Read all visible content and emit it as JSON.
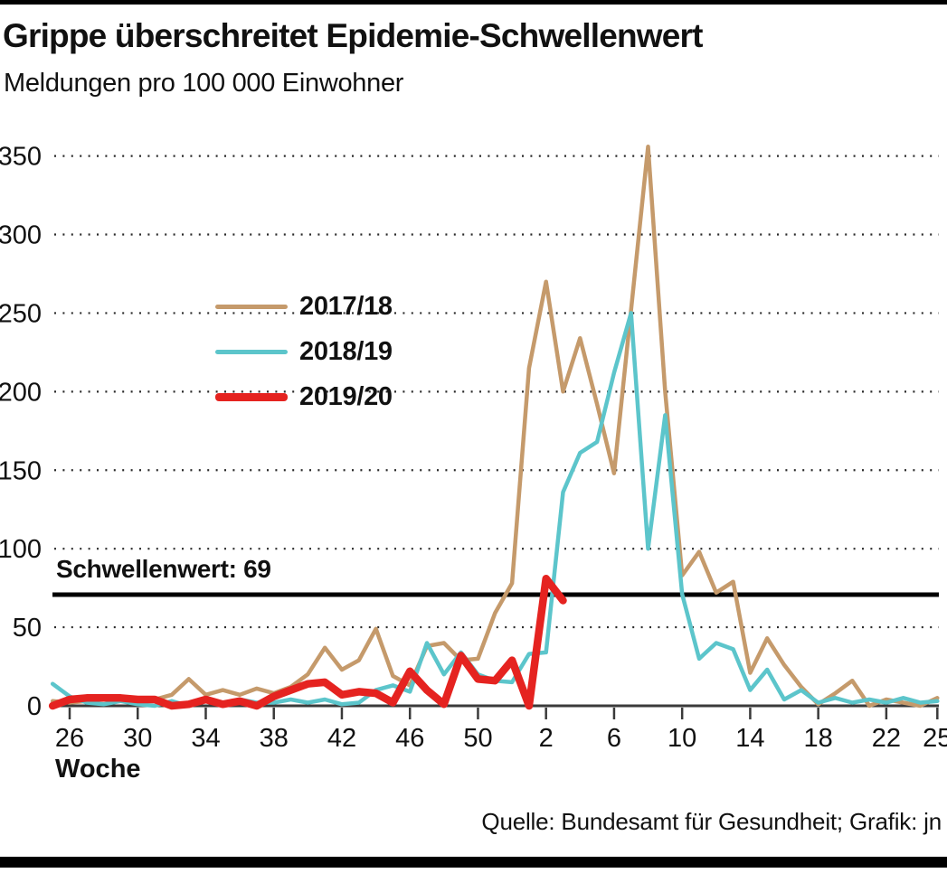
{
  "page": {
    "title": "Grippe überschreitet Epidemie-Schwellenwert",
    "subtitle": "Meldungen pro 100 000 Einwohner",
    "source": "Quelle: Bundesamt für Gesundheit; Grafik: jn"
  },
  "colors": {
    "text": "#111111",
    "axis": "#3a3a3a",
    "grid_dots": "#2a2a2a",
    "threshold_line": "#000000",
    "series_2017_18": "#c59a6b",
    "series_2018_19": "#5cc5cb",
    "series_2019_20": "#e52320"
  },
  "chart_data": {
    "type": "line",
    "x_label": "Woche",
    "y_ticks": [
      0,
      50,
      100,
      150,
      200,
      250,
      300,
      350
    ],
    "ylim": [
      0,
      350
    ],
    "grid": "dotted-horizontal",
    "legend_position": "upper-left-inside",
    "threshold": {
      "value": 69,
      "label": "Schwellenwert: 69"
    },
    "weeks": [
      "25",
      "26",
      "27",
      "28",
      "29",
      "30",
      "31",
      "32",
      "33",
      "34",
      "35",
      "36",
      "37",
      "38",
      "39",
      "40",
      "41",
      "42",
      "43",
      "44",
      "45",
      "46",
      "47",
      "48",
      "49",
      "50",
      "51",
      "52",
      "1",
      "2",
      "3",
      "4",
      "5",
      "6",
      "7",
      "8",
      "9",
      "10",
      "11",
      "12",
      "13",
      "14",
      "15",
      "16",
      "17",
      "18",
      "19",
      "20",
      "21",
      "22",
      "23",
      "24",
      "25"
    ],
    "x_tick_marks": [
      {
        "label": "26",
        "index": 1
      },
      {
        "label": "30",
        "index": 5
      },
      {
        "label": "34",
        "index": 9
      },
      {
        "label": "38",
        "index": 13
      },
      {
        "label": "42",
        "index": 17
      },
      {
        "label": "46",
        "index": 21
      },
      {
        "label": "50",
        "index": 25
      },
      {
        "label": "2",
        "index": 29
      },
      {
        "label": "6",
        "index": 33
      },
      {
        "label": "10",
        "index": 37
      },
      {
        "label": "14",
        "index": 41
      },
      {
        "label": "18",
        "index": 45
      },
      {
        "label": "22",
        "index": 49
      },
      {
        "label": "25",
        "index": 52
      }
    ],
    "series": [
      {
        "name": "2017/18",
        "color": "#c59a6b",
        "stroke_width": 4.5,
        "values": [
          3,
          2,
          3,
          5,
          4,
          3,
          4,
          7,
          17,
          7,
          10,
          7,
          11,
          8,
          12,
          20,
          37,
          23,
          29,
          49,
          19,
          13,
          38,
          40,
          29,
          30,
          59,
          78,
          215,
          270,
          200,
          234,
          192,
          148,
          252,
          356,
          200,
          83,
          98,
          72,
          79,
          21,
          43,
          26,
          12,
          1,
          8,
          16,
          0,
          4,
          2,
          0,
          5
        ]
      },
      {
        "name": "2018/19",
        "color": "#5cc5cb",
        "stroke_width": 4.5,
        "values": [
          14,
          6,
          2,
          1,
          3,
          1,
          0,
          3,
          0,
          3,
          1,
          4,
          2,
          2,
          4,
          2,
          4,
          1,
          2,
          10,
          13,
          9,
          40,
          20,
          34,
          20,
          16,
          15,
          33,
          34,
          136,
          161,
          168,
          212,
          250,
          100,
          185,
          71,
          30,
          40,
          36,
          10,
          23,
          4,
          10,
          2,
          5,
          2,
          4,
          2,
          5,
          2,
          3
        ]
      },
      {
        "name": "2019/20",
        "color": "#e52320",
        "stroke_width": 8.5,
        "values": [
          0,
          4,
          5,
          5,
          5,
          4,
          4,
          0,
          1,
          4,
          1,
          3,
          0,
          6,
          10,
          14,
          15,
          7,
          9,
          8,
          2,
          22,
          10,
          1,
          32,
          17,
          16,
          29,
          0,
          81,
          67
        ]
      }
    ]
  }
}
